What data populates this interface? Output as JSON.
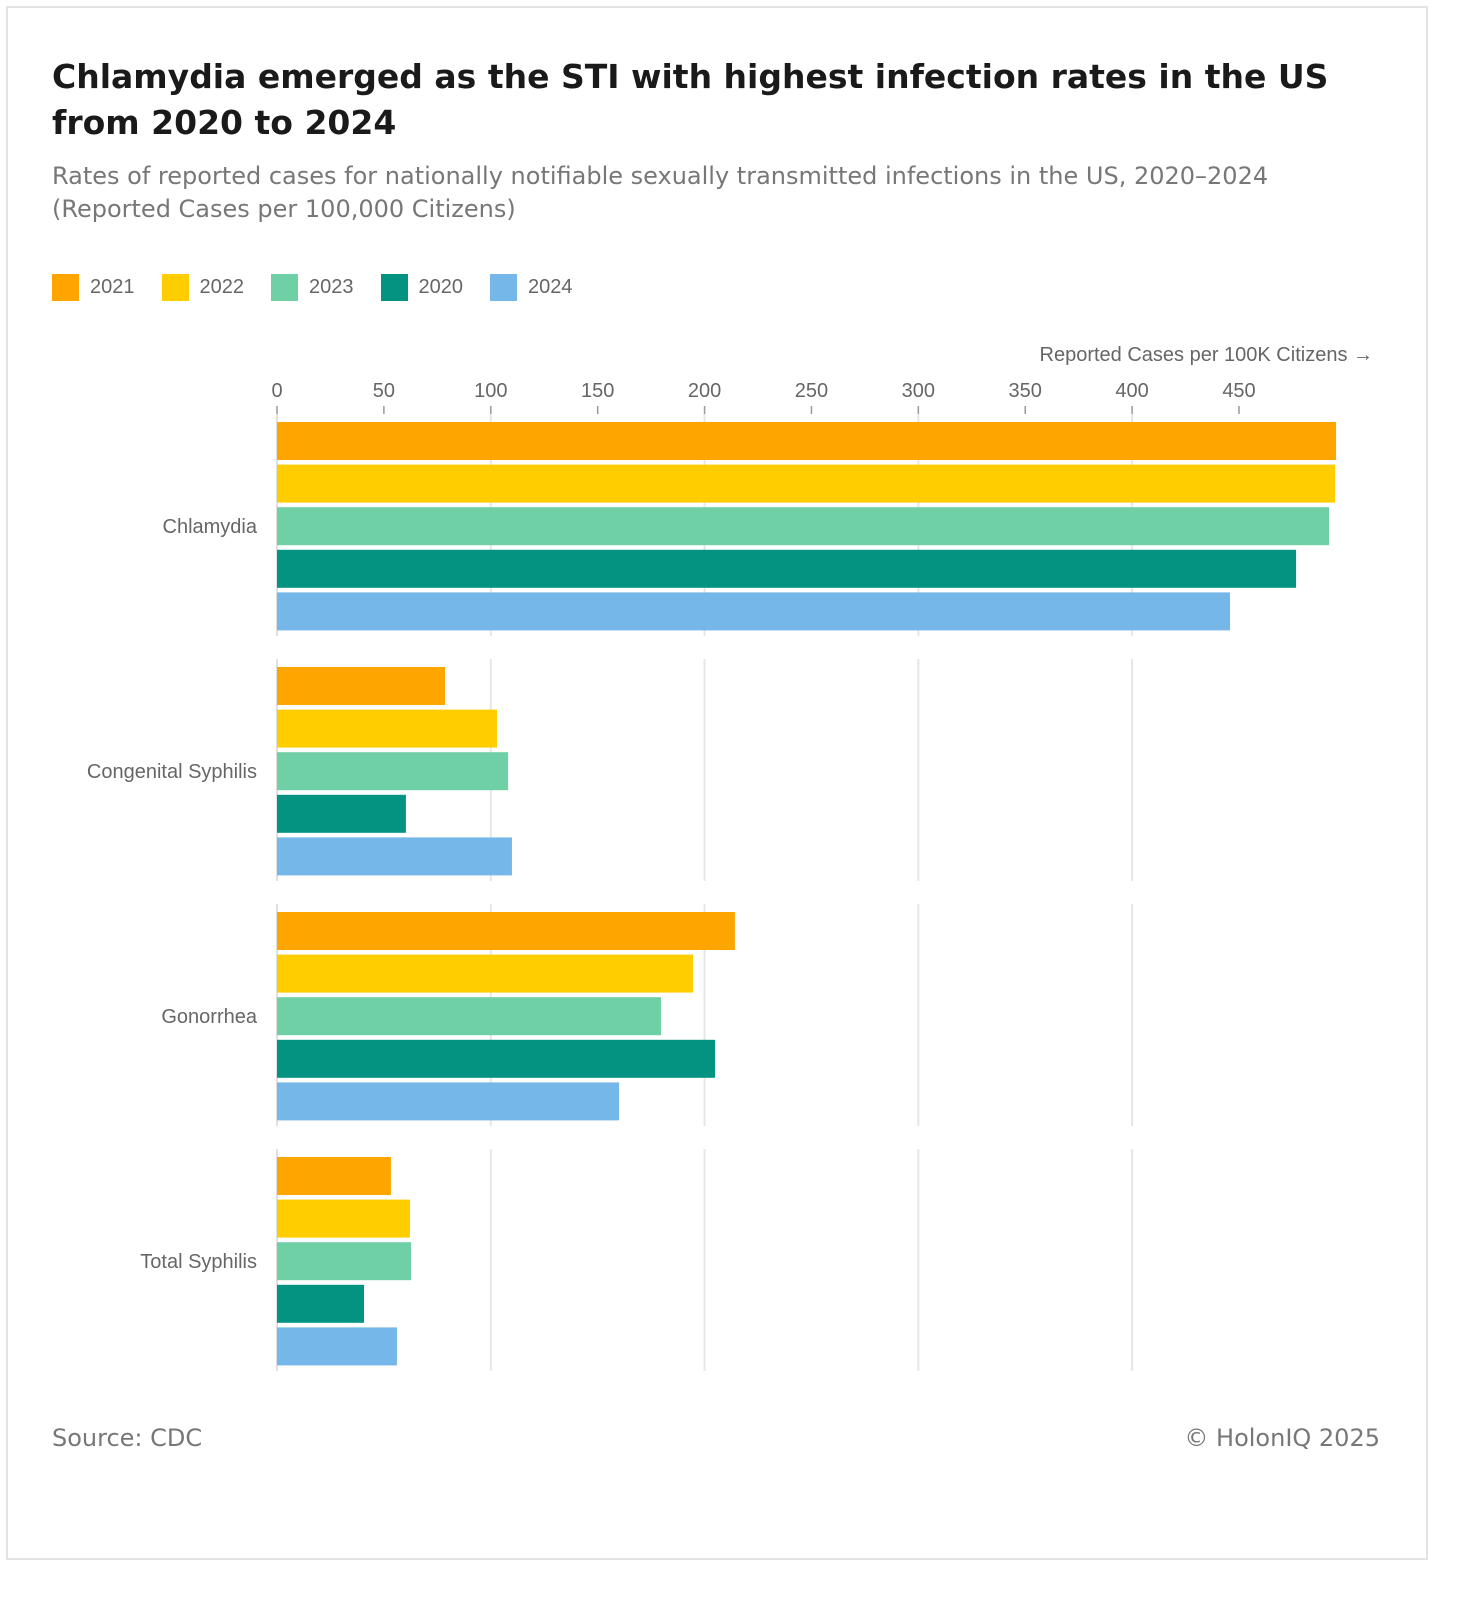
{
  "title": "Chlamydia emerged as the STI with highest infection rates in the US from 2020 to 2024",
  "subtitle": "Rates of reported cases for nationally notifiable sexually transmitted infections in the US, 2020–2024 (Reported Cases per 100,000 Citizens)",
  "source": "Source: CDC",
  "copyright": "© HolonIQ 2025",
  "chart_data": {
    "type": "bar",
    "orientation": "horizontal",
    "title": "Chlamydia emerged as the STI with highest infection rates in the US from 2020 to 2024",
    "subtitle": "Rates of reported cases for nationally notifiable sexually transmitted infections in the US, 2020–2024 (Reported Cases per 100,000 Citizens)",
    "xlabel": "Reported Cases per 100K Citizens →",
    "ylabel": "",
    "xlim": [
      0,
      495
    ],
    "xticks": [
      0,
      50,
      100,
      150,
      200,
      250,
      300,
      350,
      400,
      450
    ],
    "grid": true,
    "legend_position": "top-left",
    "categories": [
      "Chlamydia",
      "Congenital Syphilis",
      "Gonorrhea",
      "Total Syphilis"
    ],
    "series": [
      {
        "name": "2021",
        "color": "#FFA500",
        "values": [
          495.4,
          78.6,
          214.2,
          53.3
        ]
      },
      {
        "name": "2022",
        "color": "#FFCD00",
        "values": [
          494.9,
          102.9,
          194.6,
          62.2
        ]
      },
      {
        "name": "2023",
        "color": "#6FCFA5",
        "values": [
          492.1,
          108.1,
          179.6,
          62.7
        ]
      },
      {
        "name": "2020",
        "color": "#039380",
        "values": [
          476.7,
          60.3,
          204.9,
          40.7
        ]
      },
      {
        "name": "2024",
        "color": "#74B7E8",
        "values": [
          445.8,
          109.9,
          160.0,
          56.1
        ]
      }
    ]
  }
}
